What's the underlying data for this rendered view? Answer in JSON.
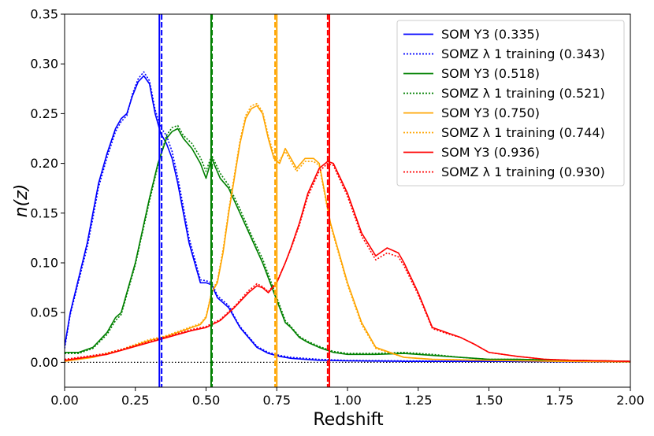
{
  "chart_data": {
    "type": "line",
    "title": "",
    "xlabel": "Redshift",
    "ylabel": "n(z)",
    "xlim": [
      0.0,
      2.0
    ],
    "ylim": [
      -0.025,
      0.35
    ],
    "xticks": [
      0.0,
      0.25,
      0.5,
      0.75,
      1.0,
      1.25,
      1.5,
      1.75,
      2.0
    ],
    "xtick_labels": [
      "0.00",
      "0.25",
      "0.50",
      "0.75",
      "1.00",
      "1.25",
      "1.50",
      "1.75",
      "2.00"
    ],
    "yticks": [
      0.0,
      0.05,
      0.1,
      0.15,
      0.2,
      0.25,
      0.3,
      0.35
    ],
    "ytick_labels": [
      "0.00",
      "0.05",
      "0.10",
      "0.15",
      "0.20",
      "0.25",
      "0.30",
      "0.35"
    ],
    "legend_position": "top-right",
    "zero_line": {
      "y": 0.0,
      "style": "dotted",
      "color": "#000000"
    },
    "series": [
      {
        "name": "SOM Y3 (0.335)",
        "bin": 1,
        "color": "#0000ff",
        "style": "solid",
        "mean": 0.335,
        "x": [
          0.0,
          0.02,
          0.05,
          0.08,
          0.1,
          0.12,
          0.15,
          0.18,
          0.2,
          0.22,
          0.24,
          0.26,
          0.28,
          0.3,
          0.32,
          0.34,
          0.36,
          0.38,
          0.4,
          0.42,
          0.44,
          0.46,
          0.48,
          0.5,
          0.52,
          0.54,
          0.56,
          0.58,
          0.6,
          0.62,
          0.65,
          0.68,
          0.72,
          0.76,
          0.8,
          0.85,
          0.9,
          1.0,
          1.2,
          1.5,
          2.0
        ],
        "y": [
          0.016,
          0.05,
          0.085,
          0.12,
          0.15,
          0.18,
          0.21,
          0.235,
          0.245,
          0.25,
          0.268,
          0.282,
          0.288,
          0.28,
          0.25,
          0.23,
          0.22,
          0.205,
          0.18,
          0.15,
          0.12,
          0.1,
          0.08,
          0.08,
          0.078,
          0.065,
          0.06,
          0.055,
          0.045,
          0.035,
          0.025,
          0.015,
          0.009,
          0.006,
          0.004,
          0.003,
          0.002,
          0.0015,
          0.001,
          0.001,
          0.0005
        ]
      },
      {
        "name": "SOMZ λ 1 training (0.343)",
        "bin": 1,
        "color": "#0000ff",
        "style": "dotted",
        "mean": 0.343,
        "x": [
          0.0,
          0.02,
          0.05,
          0.08,
          0.1,
          0.12,
          0.15,
          0.18,
          0.2,
          0.22,
          0.24,
          0.26,
          0.28,
          0.3,
          0.32,
          0.34,
          0.36,
          0.38,
          0.4,
          0.42,
          0.44,
          0.46,
          0.48,
          0.5,
          0.52,
          0.54,
          0.56,
          0.58,
          0.6,
          0.62,
          0.65,
          0.68,
          0.72,
          0.76,
          0.8,
          0.85,
          0.9,
          1.0,
          1.2,
          1.5,
          2.0
        ],
        "y": [
          0.014,
          0.048,
          0.082,
          0.116,
          0.145,
          0.176,
          0.206,
          0.232,
          0.242,
          0.248,
          0.27,
          0.285,
          0.292,
          0.283,
          0.254,
          0.236,
          0.228,
          0.212,
          0.186,
          0.156,
          0.125,
          0.104,
          0.083,
          0.082,
          0.08,
          0.067,
          0.062,
          0.057,
          0.046,
          0.036,
          0.026,
          0.016,
          0.01,
          0.007,
          0.005,
          0.004,
          0.003,
          0.002,
          0.0015,
          0.001,
          0.0005
        ]
      },
      {
        "name": "SOM Y3 (0.518)",
        "bin": 2,
        "color": "#008000",
        "style": "solid",
        "mean": 0.518,
        "x": [
          0.0,
          0.05,
          0.1,
          0.15,
          0.18,
          0.2,
          0.25,
          0.3,
          0.33,
          0.36,
          0.38,
          0.4,
          0.42,
          0.45,
          0.48,
          0.5,
          0.52,
          0.55,
          0.58,
          0.62,
          0.66,
          0.7,
          0.74,
          0.78,
          0.8,
          0.83,
          0.86,
          0.9,
          0.95,
          1.0,
          1.1,
          1.2,
          1.3,
          1.4,
          1.5,
          1.6,
          1.8,
          2.0
        ],
        "y": [
          0.01,
          0.01,
          0.015,
          0.03,
          0.045,
          0.05,
          0.1,
          0.165,
          0.2,
          0.225,
          0.232,
          0.235,
          0.225,
          0.215,
          0.2,
          0.185,
          0.205,
          0.185,
          0.175,
          0.15,
          0.125,
          0.1,
          0.07,
          0.04,
          0.035,
          0.025,
          0.02,
          0.015,
          0.01,
          0.008,
          0.008,
          0.009,
          0.007,
          0.005,
          0.003,
          0.003,
          0.002,
          0.001
        ]
      },
      {
        "name": "SOMZ λ 1 training (0.521)",
        "bin": 2,
        "color": "#008000",
        "style": "dotted",
        "mean": 0.521,
        "x": [
          0.0,
          0.05,
          0.1,
          0.15,
          0.18,
          0.2,
          0.25,
          0.3,
          0.33,
          0.36,
          0.38,
          0.4,
          0.42,
          0.45,
          0.48,
          0.5,
          0.52,
          0.55,
          0.58,
          0.62,
          0.66,
          0.7,
          0.74,
          0.78,
          0.8,
          0.83,
          0.86,
          0.9,
          0.95,
          1.0,
          1.1,
          1.2,
          1.3,
          1.4,
          1.5,
          1.6,
          1.8,
          2.0
        ],
        "y": [
          0.009,
          0.009,
          0.014,
          0.028,
          0.042,
          0.048,
          0.098,
          0.162,
          0.198,
          0.228,
          0.236,
          0.238,
          0.228,
          0.22,
          0.206,
          0.192,
          0.208,
          0.19,
          0.178,
          0.154,
          0.128,
          0.104,
          0.073,
          0.042,
          0.036,
          0.026,
          0.021,
          0.016,
          0.011,
          0.009,
          0.009,
          0.01,
          0.008,
          0.005,
          0.003,
          0.003,
          0.002,
          0.001
        ]
      },
      {
        "name": "SOM Y3 (0.750)",
        "bin": 3,
        "color": "#ffa500",
        "style": "solid",
        "mean": 0.75,
        "x": [
          0.0,
          0.1,
          0.2,
          0.3,
          0.35,
          0.4,
          0.45,
          0.48,
          0.5,
          0.52,
          0.54,
          0.56,
          0.58,
          0.6,
          0.62,
          0.64,
          0.66,
          0.68,
          0.7,
          0.72,
          0.74,
          0.76,
          0.78,
          0.8,
          0.82,
          0.85,
          0.88,
          0.9,
          0.92,
          0.94,
          0.96,
          1.0,
          1.05,
          1.1,
          1.2,
          1.3,
          1.5,
          1.75,
          2.0
        ],
        "y": [
          0.001,
          0.005,
          0.012,
          0.022,
          0.025,
          0.03,
          0.035,
          0.038,
          0.045,
          0.07,
          0.08,
          0.11,
          0.15,
          0.185,
          0.22,
          0.245,
          0.255,
          0.258,
          0.25,
          0.225,
          0.205,
          0.2,
          0.215,
          0.205,
          0.195,
          0.205,
          0.205,
          0.2,
          0.17,
          0.14,
          0.12,
          0.08,
          0.04,
          0.015,
          0.005,
          0.003,
          0.002,
          0.001,
          0.0005
        ]
      },
      {
        "name": "SOMZ λ 1 training (0.744)",
        "bin": 3,
        "color": "#ffa500",
        "style": "dotted",
        "mean": 0.744,
        "x": [
          0.0,
          0.1,
          0.2,
          0.3,
          0.35,
          0.4,
          0.45,
          0.48,
          0.5,
          0.52,
          0.54,
          0.56,
          0.58,
          0.6,
          0.62,
          0.64,
          0.66,
          0.68,
          0.7,
          0.72,
          0.74,
          0.76,
          0.78,
          0.8,
          0.82,
          0.85,
          0.88,
          0.9,
          0.92,
          0.94,
          0.96,
          1.0,
          1.05,
          1.1,
          1.2,
          1.3,
          1.5,
          1.75,
          2.0
        ],
        "y": [
          0.001,
          0.006,
          0.013,
          0.023,
          0.026,
          0.031,
          0.036,
          0.039,
          0.046,
          0.071,
          0.082,
          0.113,
          0.153,
          0.188,
          0.223,
          0.248,
          0.258,
          0.26,
          0.252,
          0.228,
          0.208,
          0.203,
          0.212,
          0.202,
          0.192,
          0.202,
          0.202,
          0.198,
          0.168,
          0.138,
          0.118,
          0.078,
          0.038,
          0.014,
          0.005,
          0.003,
          0.002,
          0.001,
          0.0005
        ]
      },
      {
        "name": "SOM Y3 (0.936)",
        "bin": 4,
        "color": "#ff0000",
        "style": "solid",
        "mean": 0.936,
        "x": [
          0.0,
          0.15,
          0.3,
          0.45,
          0.5,
          0.55,
          0.6,
          0.65,
          0.68,
          0.7,
          0.72,
          0.75,
          0.78,
          0.8,
          0.83,
          0.86,
          0.9,
          0.93,
          0.95,
          1.0,
          1.05,
          1.1,
          1.14,
          1.18,
          1.2,
          1.25,
          1.3,
          1.35,
          1.4,
          1.45,
          1.5,
          1.6,
          1.7,
          1.8,
          2.0
        ],
        "y": [
          0.002,
          0.008,
          0.02,
          0.032,
          0.035,
          0.042,
          0.055,
          0.07,
          0.077,
          0.075,
          0.07,
          0.08,
          0.1,
          0.115,
          0.14,
          0.17,
          0.195,
          0.202,
          0.2,
          0.17,
          0.13,
          0.107,
          0.115,
          0.11,
          0.1,
          0.07,
          0.035,
          0.03,
          0.025,
          0.018,
          0.01,
          0.006,
          0.003,
          0.002,
          0.001
        ]
      },
      {
        "name": "SOMZ λ 1 training (0.930)",
        "bin": 4,
        "color": "#ff0000",
        "style": "dotted",
        "mean": 0.93,
        "x": [
          0.0,
          0.15,
          0.3,
          0.45,
          0.5,
          0.55,
          0.6,
          0.65,
          0.68,
          0.7,
          0.72,
          0.75,
          0.78,
          0.8,
          0.83,
          0.86,
          0.9,
          0.93,
          0.95,
          1.0,
          1.05,
          1.1,
          1.14,
          1.18,
          1.2,
          1.25,
          1.3,
          1.35,
          1.4,
          1.45,
          1.5,
          1.6,
          1.7,
          1.8,
          2.0
        ],
        "y": [
          0.003,
          0.009,
          0.021,
          0.033,
          0.036,
          0.043,
          0.056,
          0.072,
          0.079,
          0.076,
          0.071,
          0.081,
          0.1,
          0.114,
          0.138,
          0.167,
          0.192,
          0.2,
          0.198,
          0.167,
          0.127,
          0.103,
          0.11,
          0.106,
          0.097,
          0.068,
          0.034,
          0.029,
          0.025,
          0.018,
          0.01,
          0.006,
          0.003,
          0.002,
          0.001
        ]
      }
    ],
    "vertical_lines": [
      {
        "x": 0.335,
        "color": "#0000ff",
        "style": "solid"
      },
      {
        "x": 0.343,
        "color": "#0000ff",
        "style": "dashed"
      },
      {
        "x": 0.518,
        "color": "#008000",
        "style": "solid"
      },
      {
        "x": 0.521,
        "color": "#008000",
        "style": "dashed"
      },
      {
        "x": 0.75,
        "color": "#ffa500",
        "style": "solid"
      },
      {
        "x": 0.744,
        "color": "#ffa500",
        "style": "dashed"
      },
      {
        "x": 0.936,
        "color": "#ff0000",
        "style": "solid"
      },
      {
        "x": 0.93,
        "color": "#ff0000",
        "style": "dashed"
      }
    ]
  }
}
